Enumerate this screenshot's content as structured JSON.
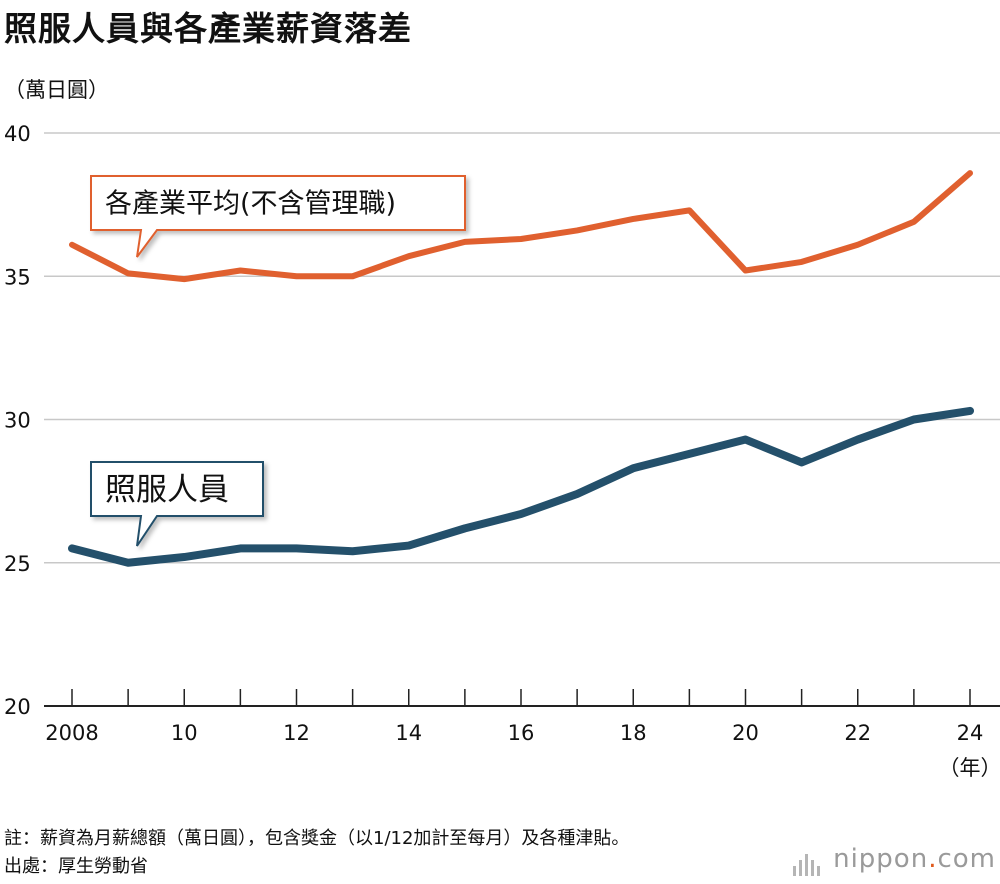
{
  "header": {
    "title": "照服人員與各產業薪資落差",
    "unit_label": "（萬日圓）"
  },
  "chart_data": {
    "type": "line",
    "title": "照服人員與各產業薪資落差",
    "ylabel": "萬日圓",
    "xlabel": "（年）",
    "ylim": [
      20,
      40
    ],
    "yticks": [
      20,
      25,
      30,
      35,
      40
    ],
    "x": [
      2008,
      2009,
      2010,
      2011,
      2012,
      2013,
      2014,
      2015,
      2016,
      2017,
      2018,
      2019,
      2020,
      2021,
      2022,
      2023,
      2024
    ],
    "xtick_labels": [
      {
        "x": 2008,
        "label": "2008"
      },
      {
        "x": 2010,
        "label": "10"
      },
      {
        "x": 2012,
        "label": "12"
      },
      {
        "x": 2014,
        "label": "14"
      },
      {
        "x": 2016,
        "label": "16"
      },
      {
        "x": 2018,
        "label": "18"
      },
      {
        "x": 2020,
        "label": "20"
      },
      {
        "x": 2022,
        "label": "22"
      },
      {
        "x": 2024,
        "label": "24"
      }
    ],
    "series": [
      {
        "name": "各產業平均(不含管理職)",
        "color": "#e0602f",
        "values": [
          36.1,
          35.1,
          34.9,
          35.2,
          35.0,
          35.0,
          35.7,
          36.2,
          36.3,
          36.6,
          37.0,
          37.3,
          35.2,
          35.5,
          36.1,
          36.9,
          38.6
        ]
      },
      {
        "name": "照服人員",
        "color": "#24506b",
        "values": [
          25.5,
          25.0,
          25.2,
          25.5,
          25.5,
          25.4,
          25.6,
          26.2,
          26.7,
          27.4,
          28.3,
          28.8,
          29.3,
          28.5,
          29.3,
          30.0,
          30.3
        ]
      }
    ],
    "grid": true
  },
  "footer": {
    "note": "註：薪資為月薪總額（萬日圓），包含獎金（以1/12加計至每月）及各種津貼。",
    "source": "出處：厚生勞動省"
  },
  "logo": {
    "name": "nippon",
    "suffix": "com",
    "dot": ".",
    "accent_color": "#e05a1c"
  }
}
